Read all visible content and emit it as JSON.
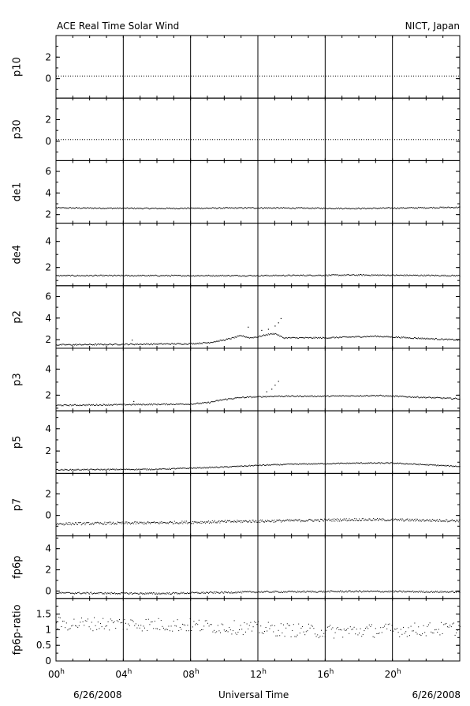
{
  "header": {
    "title": "ACE Real Time Solar Wind",
    "source": "NICT, Japan"
  },
  "footer": {
    "date_left": "6/26/2008",
    "xlabel": "Universal Time",
    "date_right": "6/26/2008"
  },
  "style": {
    "line_color": "#000000",
    "background": "#ffffff"
  },
  "chart_data": {
    "type": "scatter",
    "x_unit": "hours UT",
    "xlim": [
      0,
      24
    ],
    "x_ticks": [
      {
        "value": 0,
        "label": "00",
        "sup": "h"
      },
      {
        "value": 4,
        "label": "04",
        "sup": "h"
      },
      {
        "value": 8,
        "label": "08",
        "sup": "h"
      },
      {
        "value": 12,
        "label": "12",
        "sup": "h"
      },
      {
        "value": 16,
        "label": "16",
        "sup": "h"
      },
      {
        "value": 20,
        "label": "20",
        "sup": "h"
      }
    ],
    "panels": [
      {
        "name": "p10",
        "ylim": [
          -1.8,
          4.0
        ],
        "yticks": [
          0,
          2
        ],
        "ytick_labels": [
          "0",
          "2"
        ],
        "points": [
          [
            0,
            0.25
          ],
          [
            24,
            0.25
          ]
        ],
        "noise": 0.0,
        "style": "dotted-line"
      },
      {
        "name": "p30",
        "ylim": [
          -1.8,
          4.0
        ],
        "yticks": [
          0,
          2
        ],
        "ytick_labels": [
          "0",
          "2"
        ],
        "points": [
          [
            0,
            0.15
          ],
          [
            24,
            0.15
          ]
        ],
        "noise": 0.0,
        "style": "dotted-line"
      },
      {
        "name": "de1",
        "ylim": [
          1.2,
          7.0
        ],
        "yticks": [
          2,
          4,
          6
        ],
        "ytick_labels": [
          "2",
          "4",
          "6"
        ],
        "points": [
          [
            0,
            2.65
          ],
          [
            6,
            2.6
          ],
          [
            12,
            2.65
          ],
          [
            18,
            2.6
          ],
          [
            24,
            2.7
          ]
        ],
        "noise": 0.06,
        "style": "dots"
      },
      {
        "name": "de4",
        "ylim": [
          0.6,
          5.4
        ],
        "yticks": [
          2,
          4
        ],
        "ytick_labels": [
          "2",
          "4"
        ],
        "points": [
          [
            0,
            1.4
          ],
          [
            6,
            1.4
          ],
          [
            12,
            1.4
          ],
          [
            18,
            1.45
          ],
          [
            24,
            1.4
          ]
        ],
        "noise": 0.05,
        "style": "dots"
      },
      {
        "name": "p2",
        "ylim": [
          1.2,
          7.0
        ],
        "yticks": [
          2,
          4,
          6
        ],
        "ytick_labels": [
          "2",
          "4",
          "6"
        ],
        "points": [
          [
            0,
            1.55
          ],
          [
            4,
            1.6
          ],
          [
            8,
            1.65
          ],
          [
            9,
            1.75
          ],
          [
            10,
            2.0
          ],
          [
            11,
            2.4
          ],
          [
            11.5,
            2.2
          ],
          [
            12,
            2.3
          ],
          [
            12.5,
            2.5
          ],
          [
            13,
            2.6
          ],
          [
            13.5,
            2.2
          ],
          [
            16,
            2.2
          ],
          [
            19,
            2.35
          ],
          [
            21,
            2.2
          ],
          [
            24,
            2.0
          ]
        ],
        "noise": 0.06,
        "spikes": [
          [
            11.4,
            3.2
          ],
          [
            12.2,
            2.9
          ],
          [
            12.6,
            3.0
          ],
          [
            13.0,
            3.3
          ],
          [
            13.2,
            3.6
          ],
          [
            13.35,
            4.0
          ],
          [
            4.5,
            2.0
          ]
        ],
        "style": "dots"
      },
      {
        "name": "p3",
        "ylim": [
          0.8,
          5.6
        ],
        "yticks": [
          2,
          4
        ],
        "ytick_labels": [
          "2",
          "4"
        ],
        "points": [
          [
            0,
            1.25
          ],
          [
            4,
            1.3
          ],
          [
            8,
            1.35
          ],
          [
            9,
            1.45
          ],
          [
            10,
            1.7
          ],
          [
            11,
            1.85
          ],
          [
            12,
            1.9
          ],
          [
            13,
            1.95
          ],
          [
            16,
            1.95
          ],
          [
            19,
            2.0
          ],
          [
            21,
            1.9
          ],
          [
            24,
            1.75
          ]
        ],
        "noise": 0.05,
        "spikes": [
          [
            12.5,
            2.3
          ],
          [
            12.8,
            2.5
          ],
          [
            13.0,
            2.8
          ],
          [
            13.2,
            3.1
          ],
          [
            4.6,
            1.55
          ]
        ],
        "style": "dots"
      },
      {
        "name": "p5",
        "ylim": [
          0.0,
          5.6
        ],
        "yticks": [
          2,
          4
        ],
        "ytick_labels": [
          "2",
          "4"
        ],
        "points": [
          [
            0,
            0.35
          ],
          [
            6,
            0.4
          ],
          [
            10,
            0.6
          ],
          [
            12,
            0.75
          ],
          [
            14,
            0.85
          ],
          [
            18,
            0.95
          ],
          [
            20,
            0.95
          ],
          [
            22,
            0.8
          ],
          [
            24,
            0.65
          ]
        ],
        "noise": 0.05,
        "style": "dots"
      },
      {
        "name": "p7",
        "ylim": [
          -1.9,
          3.9
        ],
        "yticks": [
          0,
          2
        ],
        "ytick_labels": [
          "0",
          "2"
        ],
        "points": [
          [
            0,
            -0.75
          ],
          [
            6,
            -0.65
          ],
          [
            12,
            -0.5
          ],
          [
            18,
            -0.35
          ],
          [
            24,
            -0.45
          ]
        ],
        "noise": 0.12,
        "style": "dots"
      },
      {
        "name": "fp6p",
        "ylim": [
          -0.7,
          5.2
        ],
        "yticks": [
          0,
          2,
          4
        ],
        "ytick_labels": [
          "0",
          "2",
          "4"
        ],
        "points": [
          [
            0,
            -0.15
          ],
          [
            6,
            -0.2
          ],
          [
            12,
            -0.05
          ],
          [
            18,
            0.0
          ],
          [
            24,
            -0.05
          ]
        ],
        "noise": 0.08,
        "style": "dots"
      },
      {
        "name": "fp6p-ratio",
        "ylim": [
          0.0,
          2.0
        ],
        "yticks": [
          0,
          0.5,
          1,
          1.5
        ],
        "ytick_labels": [
          "0",
          "0.5",
          "1",
          "1.5"
        ],
        "points": [
          [
            0,
            1.2
          ],
          [
            4,
            1.2
          ],
          [
            8,
            1.15
          ],
          [
            12,
            1.05
          ],
          [
            16,
            0.95
          ],
          [
            20,
            1.0
          ],
          [
            24,
            1.05
          ]
        ],
        "noise": 0.22,
        "style": "scatter"
      }
    ]
  }
}
